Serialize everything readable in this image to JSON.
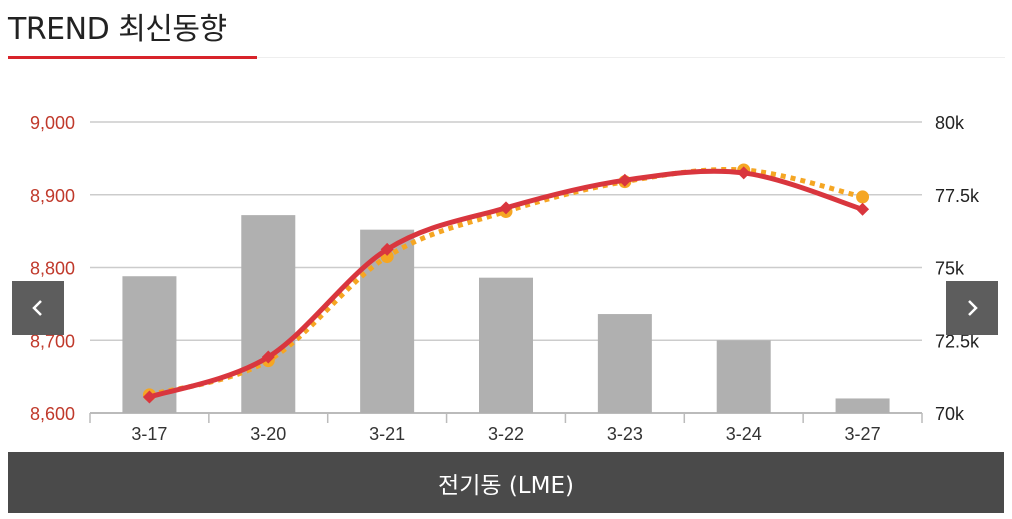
{
  "header": {
    "title": "TREND 최신동향"
  },
  "footer": {
    "label": "전기동 (LME)"
  },
  "nav": {
    "prev_icon": "chevron-left-icon",
    "next_icon": "chevron-right-icon"
  },
  "chart_data": {
    "type": "bar+line",
    "categories": [
      "3-17",
      "3-20",
      "3-21",
      "3-22",
      "3-23",
      "3-24",
      "3-27"
    ],
    "left_axis": {
      "ticks": [
        "9,000",
        "8,900",
        "8,800",
        "8,700",
        "8,600"
      ],
      "range": [
        8600,
        9000
      ],
      "color": "#c0392b"
    },
    "right_axis": {
      "ticks": [
        "80k",
        "77.5k",
        "75k",
        "72.5k",
        "70k"
      ],
      "range": [
        70000,
        80000
      ]
    },
    "series": [
      {
        "type": "bar",
        "axis": "right",
        "color": "#b0b0b0",
        "values": [
          74700,
          76800,
          76300,
          74650,
          73400,
          72500,
          70500
        ]
      },
      {
        "type": "line",
        "axis": "left",
        "style": "solid",
        "marker": "diamond",
        "color": "#d9363e",
        "values": [
          8622,
          8677,
          8825,
          8882,
          8920,
          8930,
          8880
        ]
      },
      {
        "type": "line",
        "axis": "left",
        "style": "dotted",
        "marker": "circle",
        "color": "#f5a623",
        "values": [
          8625,
          8672,
          8815,
          8877,
          8918,
          8934,
          8897
        ]
      }
    ],
    "grid": true
  }
}
